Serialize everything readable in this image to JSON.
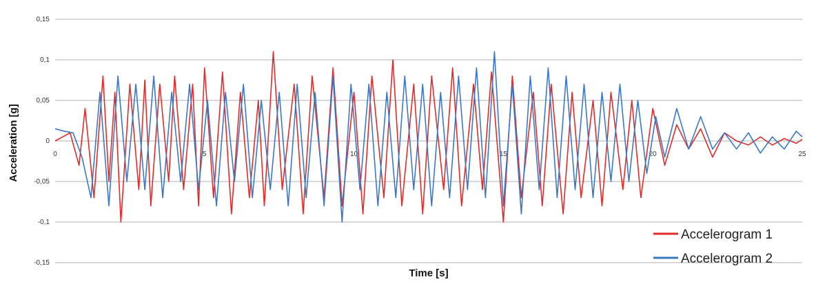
{
  "chart_data": {
    "type": "line",
    "title": "",
    "xlabel": "Time [s]",
    "ylabel": "Acceleration [g]",
    "xlim": [
      0,
      25
    ],
    "ylim": [
      -0.15,
      0.15
    ],
    "x_ticks": [
      "0",
      "5",
      "10",
      "15",
      "20",
      "25"
    ],
    "y_ticks": [
      "0,15",
      "0,1",
      "0,05",
      "0",
      "-0,05",
      "-0,1",
      "-0,15"
    ],
    "y_tick_values": [
      0.15,
      0.1,
      0.05,
      0,
      -0.05,
      -0.1,
      -0.15
    ],
    "x_tick_values": [
      0,
      5,
      10,
      15,
      20,
      25
    ],
    "grid": "horizontal",
    "legend": "bottom-right",
    "series": [
      {
        "name": "Accelerogram 1",
        "color": "#e02b2b",
        "x": [
          0,
          0.5,
          0.8,
          1.0,
          1.3,
          1.6,
          1.8,
          2.0,
          2.2,
          2.5,
          2.8,
          3.0,
          3.2,
          3.5,
          3.8,
          4.0,
          4.3,
          4.6,
          4.8,
          5.0,
          5.3,
          5.6,
          5.9,
          6.2,
          6.5,
          6.8,
          7.0,
          7.3,
          7.6,
          8.0,
          8.3,
          8.6,
          9.0,
          9.3,
          9.6,
          10.0,
          10.3,
          10.6,
          11.0,
          11.3,
          11.6,
          12.0,
          12.3,
          12.6,
          13.0,
          13.3,
          13.6,
          14.0,
          14.3,
          14.6,
          15.0,
          15.3,
          15.6,
          16.0,
          16.3,
          16.6,
          17.0,
          17.3,
          17.6,
          18.0,
          18.3,
          18.6,
          19.0,
          19.3,
          19.6,
          20.0,
          20.4,
          20.8,
          21.2,
          21.6,
          22.0,
          22.4,
          22.8,
          23.2,
          23.6,
          24.0,
          24.4,
          24.8,
          25.0
        ],
        "y": [
          0,
          0.01,
          -0.03,
          0.04,
          -0.07,
          0.08,
          -0.05,
          0.06,
          -0.1,
          0.07,
          -0.06,
          0.075,
          -0.08,
          0.07,
          -0.05,
          0.08,
          -0.06,
          0.07,
          -0.08,
          0.09,
          -0.07,
          0.085,
          -0.09,
          0.06,
          -0.07,
          0.05,
          -0.08,
          0.11,
          -0.06,
          0.07,
          -0.09,
          0.08,
          -0.07,
          0.09,
          -0.08,
          0.06,
          -0.09,
          0.08,
          -0.07,
          0.1,
          -0.08,
          0.07,
          -0.09,
          0.08,
          -0.06,
          0.09,
          -0.08,
          0.07,
          -0.06,
          0.085,
          -0.1,
          0.08,
          -0.07,
          0.06,
          -0.08,
          0.07,
          -0.09,
          0.06,
          -0.07,
          0.05,
          -0.08,
          0.06,
          -0.06,
          0.05,
          -0.07,
          0.04,
          -0.03,
          0.02,
          -0.01,
          0.015,
          -0.02,
          0.01,
          0,
          -0.005,
          0.005,
          -0.005,
          0.003,
          -0.003,
          0.002
        ]
      },
      {
        "name": "Accelerogram 2",
        "color": "#3a78c3",
        "x": [
          0,
          0.3,
          0.6,
          0.9,
          1.2,
          1.5,
          1.8,
          2.1,
          2.4,
          2.7,
          3.0,
          3.3,
          3.6,
          3.9,
          4.2,
          4.5,
          4.8,
          5.1,
          5.4,
          5.7,
          6.0,
          6.3,
          6.6,
          6.9,
          7.2,
          7.5,
          7.8,
          8.1,
          8.4,
          8.7,
          9.0,
          9.3,
          9.6,
          9.9,
          10.2,
          10.5,
          10.8,
          11.1,
          11.4,
          11.7,
          12.0,
          12.3,
          12.6,
          12.9,
          13.2,
          13.5,
          13.8,
          14.1,
          14.4,
          14.7,
          15.0,
          15.3,
          15.6,
          15.9,
          16.2,
          16.5,
          16.8,
          17.1,
          17.4,
          17.7,
          18.0,
          18.3,
          18.6,
          18.9,
          19.2,
          19.5,
          19.8,
          20.1,
          20.4,
          20.8,
          21.2,
          21.6,
          22.0,
          22.4,
          22.8,
          23.2,
          23.6,
          24.0,
          24.4,
          24.8,
          25.0
        ],
        "y": [
          0.015,
          0.012,
          0.01,
          -0.02,
          -0.07,
          0.06,
          -0.08,
          0.08,
          -0.05,
          0.07,
          -0.06,
          0.08,
          -0.07,
          0.06,
          -0.05,
          0.07,
          -0.06,
          0.05,
          -0.08,
          0.06,
          -0.05,
          0.07,
          -0.07,
          0.05,
          -0.06,
          0.06,
          -0.08,
          0.07,
          -0.07,
          0.06,
          -0.08,
          0.08,
          -0.1,
          0.07,
          -0.06,
          0.07,
          -0.08,
          0.06,
          -0.07,
          0.08,
          -0.06,
          0.07,
          -0.08,
          0.06,
          -0.07,
          0.08,
          -0.06,
          0.09,
          -0.07,
          0.11,
          -0.08,
          0.07,
          -0.09,
          0.08,
          -0.06,
          0.09,
          -0.07,
          0.08,
          -0.06,
          0.07,
          -0.07,
          0.06,
          -0.05,
          0.07,
          -0.05,
          0.05,
          -0.04,
          0.03,
          -0.02,
          0.04,
          -0.01,
          0.03,
          -0.01,
          0.01,
          -0.01,
          0.01,
          -0.015,
          0.005,
          -0.01,
          0.012,
          0.005
        ]
      }
    ]
  }
}
